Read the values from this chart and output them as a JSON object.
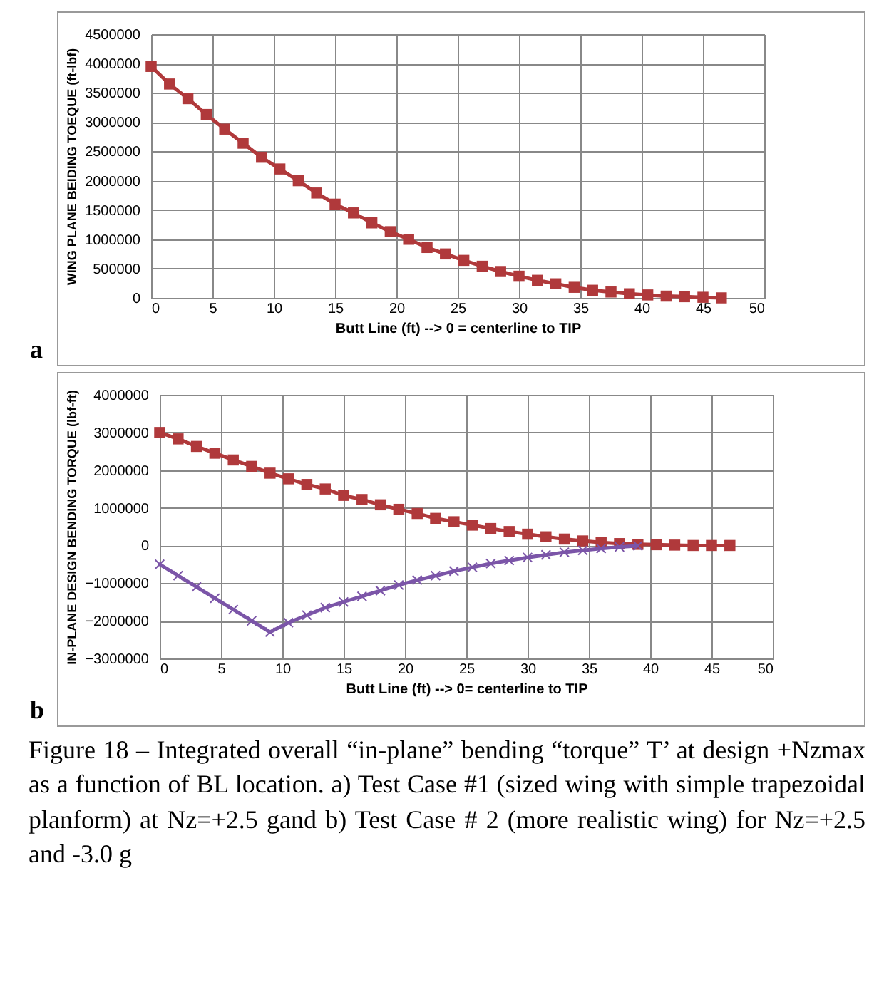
{
  "chart_data": [
    {
      "type": "line",
      "ylabel": "WING PLANE BEIDING TOEQUE  (ft-lbf)",
      "xlabel": "Butt Line (ft) --> 0 = centerline to TIP",
      "annotations": [
        "a"
      ],
      "x": [
        0,
        1.5,
        3,
        4.5,
        6,
        7.5,
        9,
        10.5,
        12,
        13.5,
        15,
        16.5,
        18,
        19.5,
        21,
        22.5,
        24,
        25.5,
        27,
        28.5,
        30,
        31.5,
        33,
        34.5,
        36,
        37.5,
        39,
        40.5,
        42,
        43.5,
        45,
        46.5
      ],
      "series": [
        {
          "color": "#b0393b",
          "marker": "square",
          "values": [
            3950000,
            3650000,
            3400000,
            3130000,
            2880000,
            2640000,
            2400000,
            2200000,
            2000000,
            1790000,
            1600000,
            1450000,
            1280000,
            1130000,
            1000000,
            860000,
            750000,
            640000,
            540000,
            450000,
            370000,
            300000,
            240000,
            180000,
            130000,
            100000,
            70000,
            50000,
            30000,
            20000,
            10000,
            0
          ]
        }
      ],
      "xlim": [
        0,
        50
      ],
      "xticks": [
        0,
        5,
        10,
        15,
        20,
        25,
        30,
        35,
        40,
        45,
        50
      ],
      "ylim": [
        0,
        4500000
      ],
      "yticks": [
        0,
        500000,
        1000000,
        1500000,
        2000000,
        2500000,
        3000000,
        3500000,
        4000000,
        4500000
      ],
      "grid": true,
      "legend": false
    },
    {
      "type": "line",
      "ylabel": "IN-PLANE DESIGN BENDING TORQUE (lbf-ft)",
      "xlabel": "Butt Line (ft) --> 0= centerline to TIP",
      "annotations": [
        "b",
        "Figure 18 – Integrated overall “in-plane” bending “torque” T’ at design +Nzmax as a function of BL location. a) Test Case #1 (sized wing with simple trapezoidal planform) at Nz=+2.5 gand b) Test Case # 2 (more realistic wing) for Nz=+2.5 and -3.0 g"
      ],
      "x": [
        0,
        1.5,
        3,
        4.5,
        6,
        7.5,
        9,
        10.5,
        12,
        13.5,
        15,
        16.5,
        18,
        19.5,
        21,
        22.5,
        24,
        25.5,
        27,
        28.5,
        30,
        31.5,
        33,
        34.5,
        36,
        37.5,
        39,
        40.5,
        42,
        43.5,
        45,
        46.5
      ],
      "series": [
        {
          "color": "#b0393b",
          "marker": "square",
          "values": [
            3000000,
            2830000,
            2630000,
            2450000,
            2270000,
            2100000,
            1920000,
            1770000,
            1620000,
            1500000,
            1330000,
            1220000,
            1080000,
            960000,
            850000,
            720000,
            630000,
            540000,
            450000,
            370000,
            300000,
            230000,
            170000,
            120000,
            80000,
            50000,
            30000,
            20000,
            10000,
            0,
            0,
            0
          ]
        },
        {
          "color": "#7b55a8",
          "marker": "cross",
          "x": [
            0,
            1.5,
            3,
            4.5,
            6,
            7.5,
            9,
            10.5,
            12,
            13.5,
            15,
            16.5,
            18,
            19.5,
            21,
            22.5,
            24,
            25.5,
            27,
            28.5,
            30,
            31.5,
            33,
            34.5,
            36,
            37.5,
            39
          ],
          "values": [
            -500000,
            -800000,
            -1100000,
            -1400000,
            -1700000,
            -2000000,
            -2300000,
            -2050000,
            -1850000,
            -1650000,
            -1500000,
            -1350000,
            -1200000,
            -1050000,
            -920000,
            -800000,
            -680000,
            -580000,
            -480000,
            -400000,
            -320000,
            -250000,
            -180000,
            -130000,
            -80000,
            -40000,
            -10000
          ]
        }
      ],
      "xlim": [
        0,
        50
      ],
      "xticks": [
        0,
        5,
        10,
        15,
        20,
        25,
        30,
        35,
        40,
        45,
        50
      ],
      "ylim": [
        -3000000,
        4000000
      ],
      "yticks": [
        -3000000,
        -2000000,
        -1000000,
        0,
        1000000,
        2000000,
        3000000,
        4000000
      ],
      "grid": true,
      "legend": false
    }
  ]
}
